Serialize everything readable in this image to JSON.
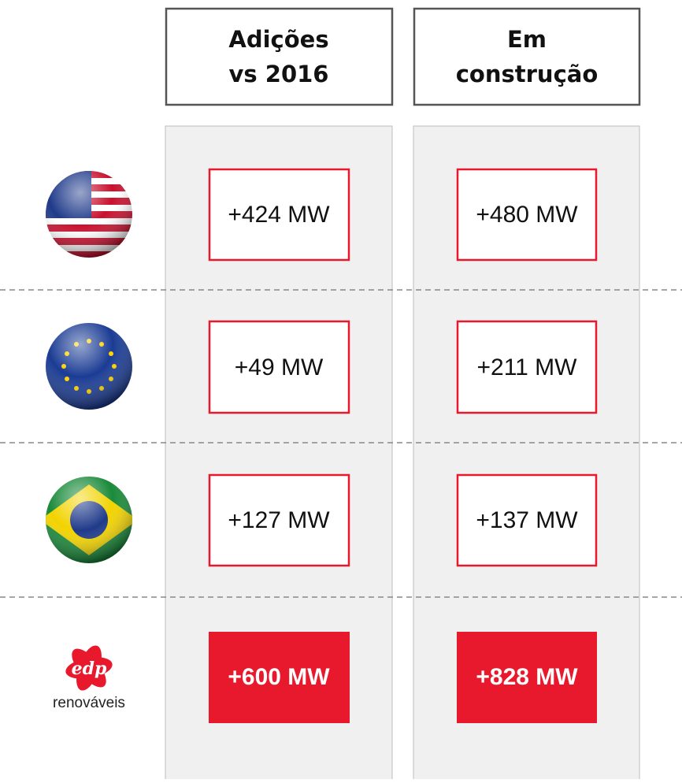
{
  "header": {
    "columns": [
      [
        "Adições",
        "vs 2016"
      ],
      [
        "Em",
        "construção"
      ]
    ]
  },
  "table": {
    "rows": [
      [
        "+424 MW",
        "+480 MW"
      ],
      [
        "+49 MW",
        "+211 MW"
      ],
      [
        "+127 MW",
        "+137 MW"
      ],
      [
        "+600 MW",
        "+828 MW"
      ]
    ]
  },
  "logo": {
    "mark": "edp",
    "name": "renováveis"
  }
}
